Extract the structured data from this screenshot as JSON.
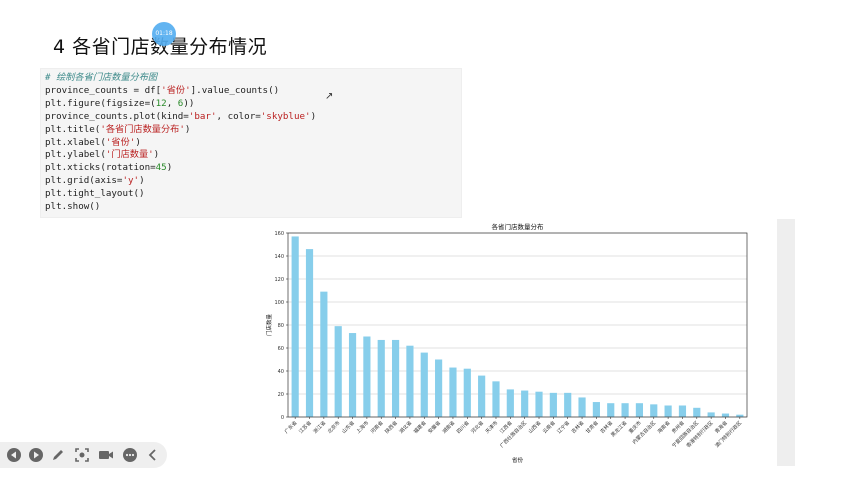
{
  "heading": {
    "title": "4 各省门店数量分布情况"
  },
  "timer": {
    "label": "01:18"
  },
  "code_lines": [
    [
      {
        "t": "# 绘制各省门店数量分布图",
        "c": "cm"
      }
    ],
    [
      {
        "t": "province_counts = df["
      },
      {
        "t": "'省份'",
        "c": "st"
      },
      {
        "t": "].value_counts()"
      }
    ],
    [
      {
        "t": "plt.figure(figsize=("
      },
      {
        "t": "12",
        "c": "nm"
      },
      {
        "t": ", "
      },
      {
        "t": "6",
        "c": "nm"
      },
      {
        "t": "))"
      }
    ],
    [
      {
        "t": "province_counts.plot(kind="
      },
      {
        "t": "'bar'",
        "c": "st"
      },
      {
        "t": ", color="
      },
      {
        "t": "'skyblue'",
        "c": "st"
      },
      {
        "t": ")"
      }
    ],
    [
      {
        "t": "plt.title("
      },
      {
        "t": "'各省门店数量分布'",
        "c": "st"
      },
      {
        "t": ")"
      }
    ],
    [
      {
        "t": "plt.xlabel("
      },
      {
        "t": "'省份'",
        "c": "st"
      },
      {
        "t": ")"
      }
    ],
    [
      {
        "t": "plt.ylabel("
      },
      {
        "t": "'门店数量'",
        "c": "st"
      },
      {
        "t": ")"
      }
    ],
    [
      {
        "t": "plt.xticks(rotation="
      },
      {
        "t": "45",
        "c": "nm"
      },
      {
        "t": ")"
      }
    ],
    [
      {
        "t": "plt.grid(axis="
      },
      {
        "t": "'y'",
        "c": "st"
      },
      {
        "t": ")"
      }
    ],
    [
      {
        "t": "plt.tight_layout()"
      }
    ],
    [
      {
        "t": "plt.show()"
      }
    ]
  ],
  "chart_data": {
    "type": "bar",
    "title": "各省门店数量分布",
    "xlabel": "省份",
    "ylabel": "门店数量",
    "categories": [
      "广东省",
      "江苏省",
      "浙江省",
      "北京市",
      "山东省",
      "上海市",
      "河南省",
      "陕西省",
      "湖北省",
      "福建省",
      "安徽省",
      "湖南省",
      "四川省",
      "河北省",
      "天津市",
      "江西省",
      "广西壮族自治区",
      "山西省",
      "云南省",
      "辽宁省",
      "吉林省",
      "甘肃省",
      "吉林省",
      "黑龙江省",
      "重庆市",
      "内蒙古自治区",
      "海南省",
      "贵州省",
      "宁夏回族自治区",
      "香港特别行政区",
      "青海省",
      "澳门特别行政区"
    ],
    "values": [
      157,
      146,
      109,
      79,
      73,
      70,
      67,
      67,
      62,
      56,
      50,
      43,
      42,
      36,
      31,
      24,
      23,
      22,
      21,
      21,
      17,
      13,
      12,
      12,
      12,
      11,
      10,
      10,
      8,
      4,
      3,
      2
    ],
    "ylim": [
      0,
      160
    ],
    "yticks": [
      0,
      20,
      40,
      60,
      80,
      100,
      120,
      140,
      160
    ],
    "grid": "y",
    "bar_color": "#87ceeb"
  },
  "toolbar": {
    "icons": [
      "prev-icon",
      "next-icon",
      "pen-icon",
      "screenshot-icon",
      "camera-icon",
      "more-icon",
      "collapse-icon"
    ]
  }
}
